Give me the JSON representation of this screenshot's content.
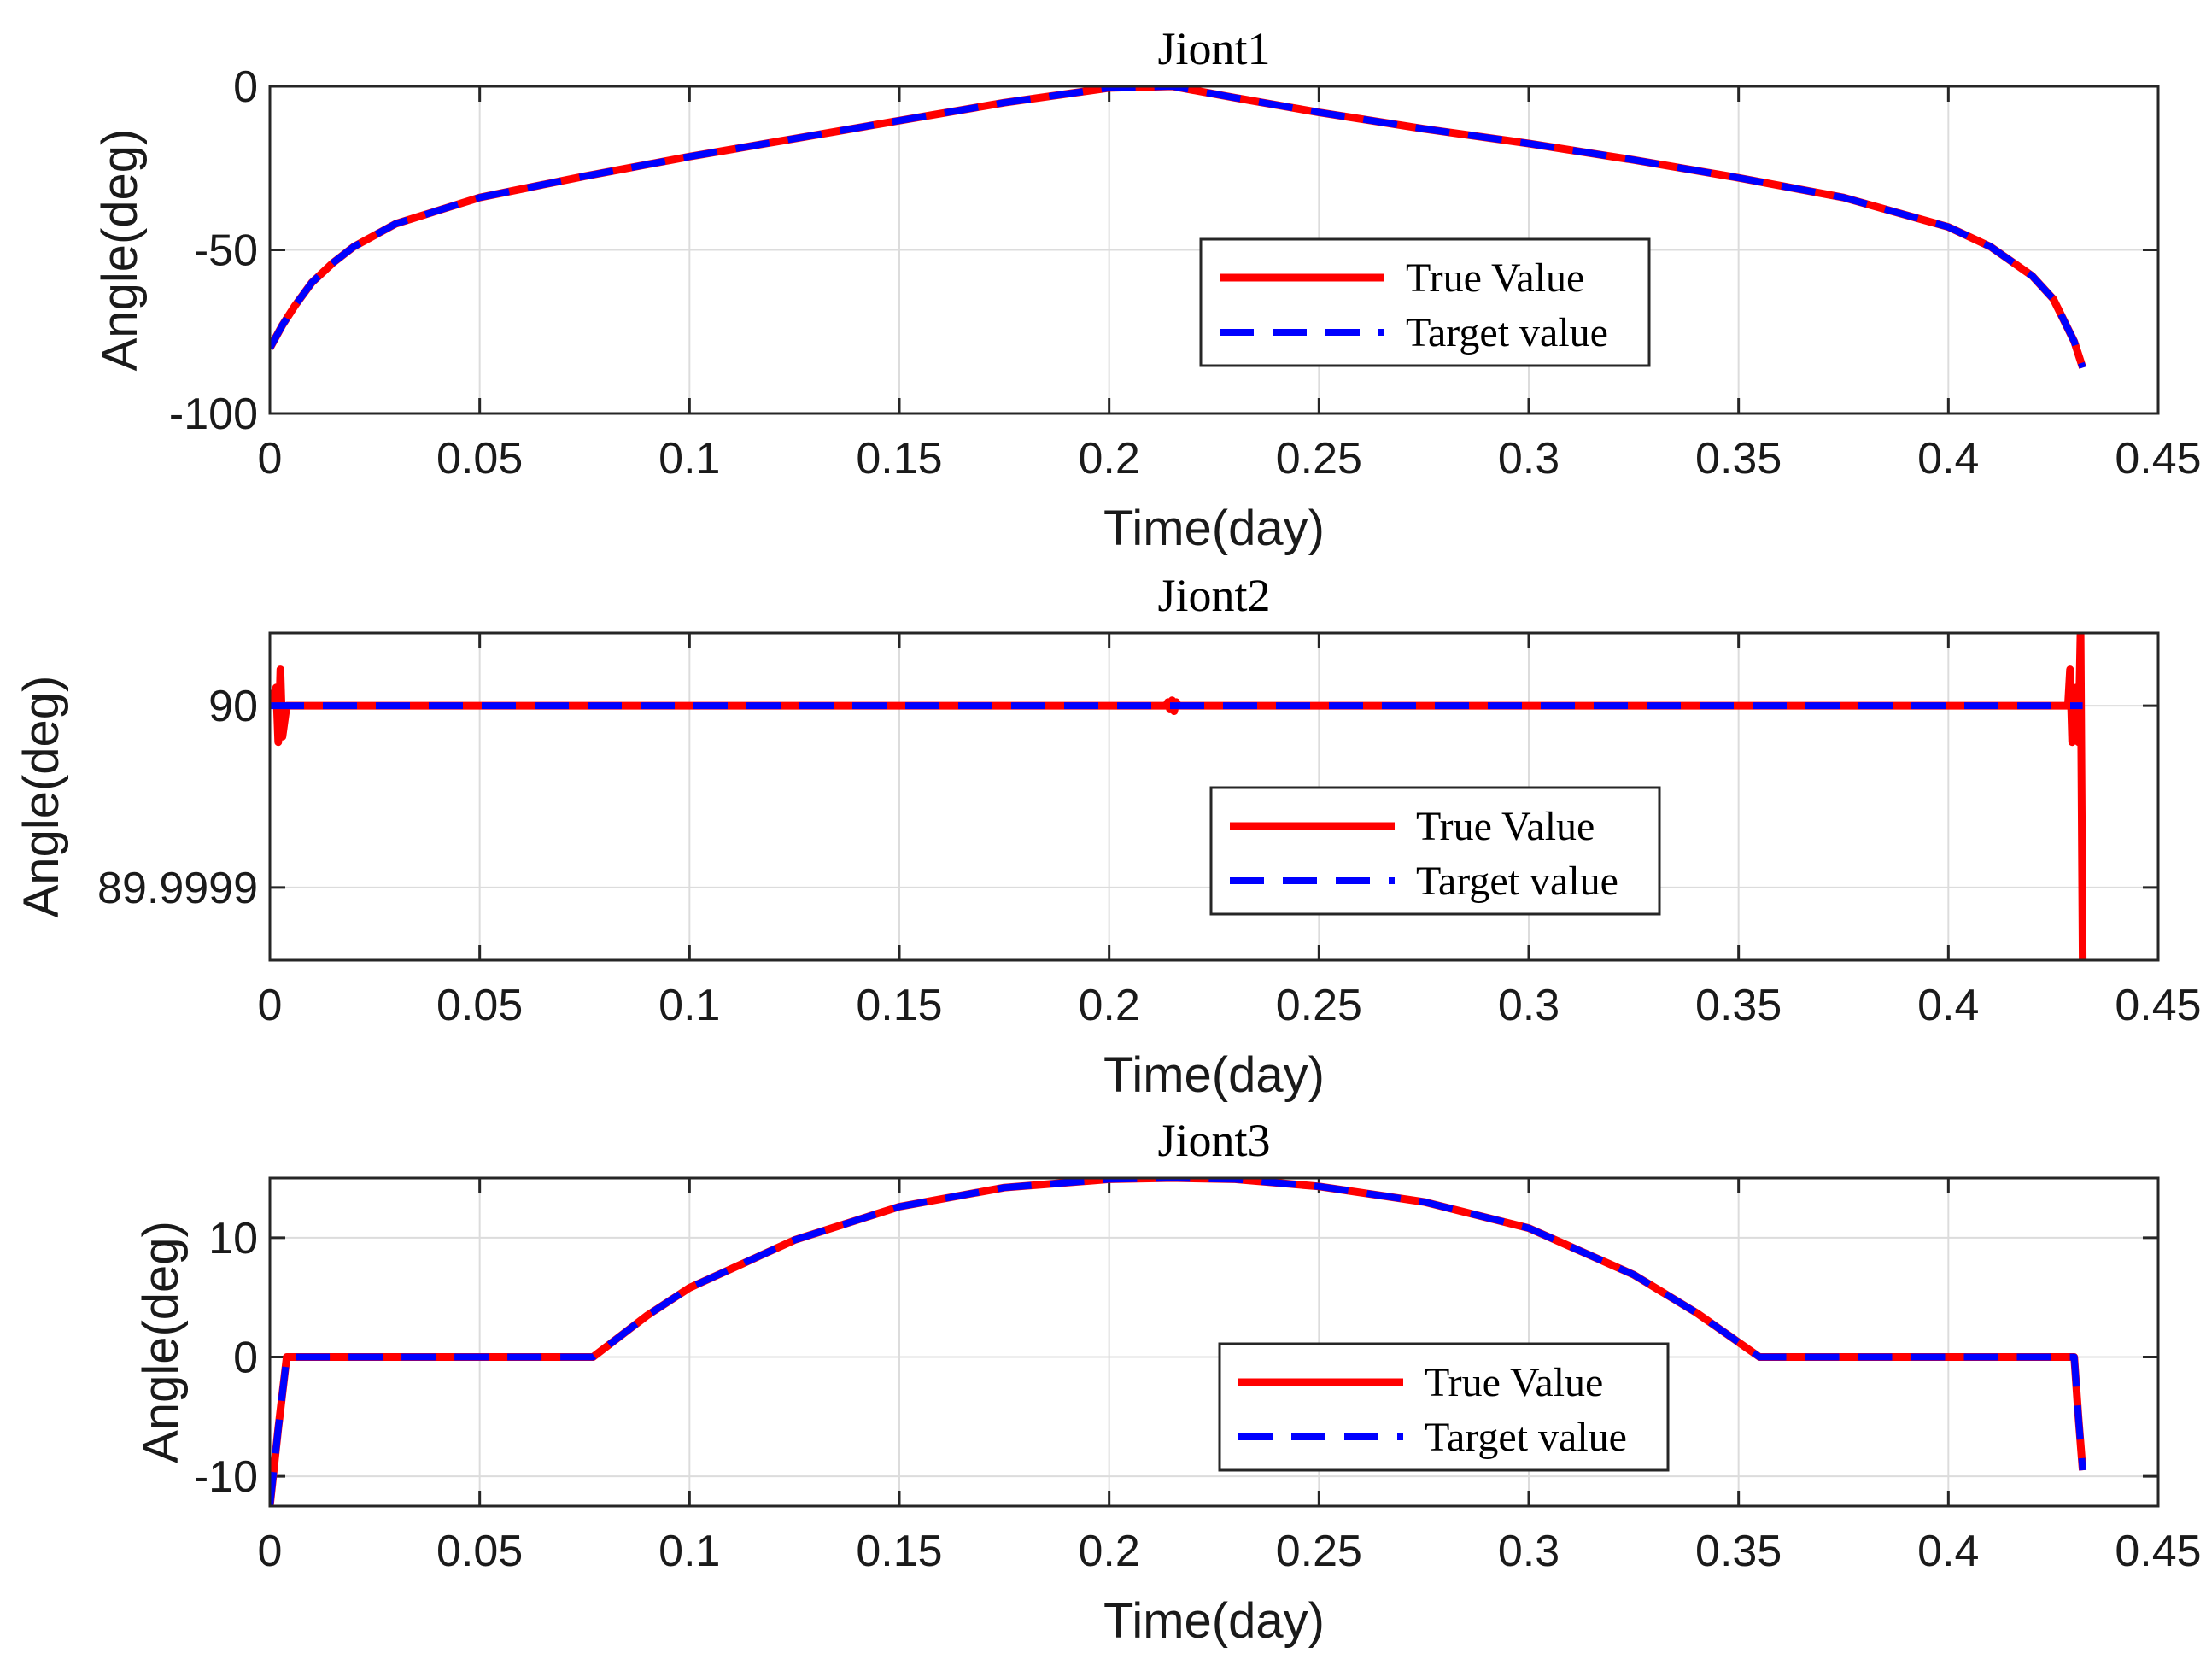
{
  "chart_data": [
    {
      "type": "line",
      "title": "Jiont1",
      "xlabel": "Time(day)",
      "ylabel": "Angle(deg)",
      "xlim": [
        0,
        0.45
      ],
      "ylim": [
        -100,
        0
      ],
      "xticks": [
        "0",
        "0.05",
        "0.1",
        "0.15",
        "0.2",
        "0.25",
        "0.3",
        "0.35",
        "0.4",
        "0.45"
      ],
      "yticks": [
        "0",
        "-50",
        "-100"
      ],
      "ytick_values": [
        0,
        -50,
        -100
      ],
      "grid": true,
      "legend_position": "center-right",
      "series": [
        {
          "name": "True Value",
          "color": "#ff0000",
          "style": "solid",
          "x": [
            0,
            0.003,
            0.006,
            0.01,
            0.015,
            0.02,
            0.03,
            0.05,
            0.075,
            0.1,
            0.125,
            0.15,
            0.175,
            0.2,
            0.215,
            0.23,
            0.25,
            0.275,
            0.3,
            0.325,
            0.35,
            0.375,
            0.4,
            0.41,
            0.42,
            0.425,
            0.43,
            0.432
          ],
          "y": [
            -80,
            -73,
            -67,
            -60,
            -54,
            -49,
            -42,
            -34,
            -27.5,
            -21.5,
            -16,
            -10.5,
            -5,
            -0.5,
            0,
            -3.5,
            -8,
            -13,
            -17.5,
            -22.5,
            -28,
            -34,
            -43,
            -49,
            -58,
            -65,
            -78,
            -86
          ]
        },
        {
          "name": "Target value",
          "color": "#0000ff",
          "style": "dashed",
          "x": [
            0,
            0.003,
            0.006,
            0.01,
            0.015,
            0.02,
            0.03,
            0.05,
            0.075,
            0.1,
            0.125,
            0.15,
            0.175,
            0.2,
            0.215,
            0.23,
            0.25,
            0.275,
            0.3,
            0.325,
            0.35,
            0.375,
            0.4,
            0.41,
            0.42,
            0.425,
            0.43,
            0.432
          ],
          "y": [
            -80,
            -73,
            -67,
            -60,
            -54,
            -49,
            -42,
            -34,
            -27.5,
            -21.5,
            -16,
            -10.5,
            -5,
            -0.5,
            0,
            -3.5,
            -8,
            -13,
            -17.5,
            -22.5,
            -28,
            -34,
            -43,
            -49,
            -58,
            -65,
            -78,
            -86
          ]
        }
      ]
    },
    {
      "type": "line",
      "title": "Jiont2",
      "xlabel": "Time(day)",
      "ylabel": "Angle(deg)",
      "xlim": [
        0,
        0.45
      ],
      "ylim": [
        89.99986,
        90.00004
      ],
      "xticks": [
        "0",
        "0.05",
        "0.1",
        "0.15",
        "0.2",
        "0.25",
        "0.3",
        "0.35",
        "0.4",
        "0.45"
      ],
      "yticks": [
        "90",
        "89.9999"
      ],
      "ytick_values": [
        90,
        89.9999
      ],
      "grid": true,
      "legend_position": "center-right",
      "series": [
        {
          "name": "True Value",
          "color": "#ff0000",
          "style": "solid",
          "x": [
            0,
            0.0015,
            0.002,
            0.0025,
            0.003,
            0.004,
            0.2135,
            0.214,
            0.2145,
            0.215,
            0.2155,
            0.216,
            0.2165,
            0.4285,
            0.429,
            0.4295,
            0.4305,
            0.431,
            0.4315,
            0.432
          ],
          "y": [
            90,
            90.00001,
            89.99998,
            90.00002,
            89.999983,
            90,
            90,
            90.000002,
            89.999998,
            90.000003,
            89.999997,
            90.000002,
            90,
            90,
            90.00002,
            89.99998,
            90.00001,
            89.99998,
            90.00004,
            89.99986
          ]
        },
        {
          "name": "Target value",
          "color": "#0000ff",
          "style": "dashed",
          "x": [
            0,
            0.432
          ],
          "y": [
            90,
            90
          ]
        }
      ]
    },
    {
      "type": "line",
      "title": "Jiont3",
      "xlabel": "Time(day)",
      "ylabel": "Angle(deg)",
      "xlim": [
        0,
        0.45
      ],
      "ylim": [
        -12.5,
        15
      ],
      "xticks": [
        "0",
        "0.05",
        "0.1",
        "0.15",
        "0.2",
        "0.25",
        "0.3",
        "0.35",
        "0.4",
        "0.45"
      ],
      "yticks": [
        "10",
        "0",
        "-10"
      ],
      "ytick_values": [
        10,
        0,
        -10
      ],
      "grid": true,
      "legend_position": "center-right",
      "series": [
        {
          "name": "True Value",
          "color": "#ff0000",
          "style": "solid",
          "x": [
            0,
            0.002,
            0.004,
            0.077,
            0.09,
            0.1,
            0.125,
            0.15,
            0.175,
            0.2,
            0.215,
            0.23,
            0.25,
            0.275,
            0.3,
            0.325,
            0.34,
            0.355,
            0.43,
            0.431,
            0.432
          ],
          "y": [
            -12.5,
            -6,
            0,
            0,
            3.5,
            5.8,
            9.8,
            12.6,
            14.2,
            14.9,
            15,
            14.9,
            14.3,
            13,
            10.8,
            6.9,
            3.7,
            0,
            0,
            -5,
            -9.5
          ]
        },
        {
          "name": "Target value",
          "color": "#0000ff",
          "style": "dashed",
          "x": [
            0,
            0.002,
            0.004,
            0.077,
            0.09,
            0.1,
            0.125,
            0.15,
            0.175,
            0.2,
            0.215,
            0.23,
            0.25,
            0.275,
            0.3,
            0.325,
            0.34,
            0.355,
            0.43,
            0.431,
            0.432
          ],
          "y": [
            -12.5,
            -6,
            0,
            0,
            3.5,
            5.8,
            9.8,
            12.6,
            14.2,
            14.9,
            15,
            14.9,
            14.3,
            13,
            10.8,
            6.9,
            3.7,
            0,
            0,
            -5,
            -9.5
          ]
        }
      ]
    }
  ]
}
